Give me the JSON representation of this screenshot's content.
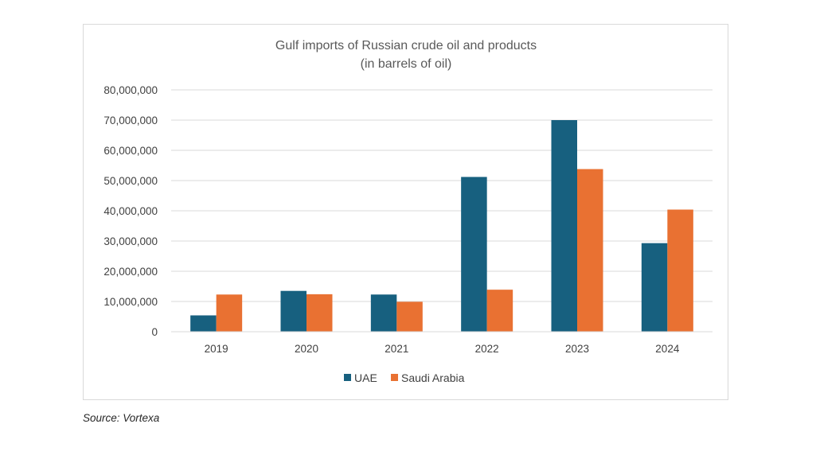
{
  "chart_data": {
    "type": "bar",
    "title": "Gulf imports of Russian crude oil and products",
    "subtitle": "(in barrels of oil)",
    "xlabel": "",
    "ylabel": "",
    "categories": [
      "2019",
      "2020",
      "2021",
      "2022",
      "2023",
      "2024"
    ],
    "series": [
      {
        "name": "UAE",
        "color": "#17607f",
        "values": [
          5400000,
          13500000,
          12300000,
          51200000,
          70000000,
          29300000
        ]
      },
      {
        "name": "Saudi Arabia",
        "color": "#e97132",
        "values": [
          12300000,
          12400000,
          9900000,
          13900000,
          53800000,
          40400000
        ]
      }
    ],
    "ylim": [
      0,
      80000000
    ],
    "yticks": [
      0,
      10000000,
      20000000,
      30000000,
      40000000,
      50000000,
      60000000,
      70000000,
      80000000
    ],
    "ytick_labels": [
      "0",
      "10,000,000",
      "20,000,000",
      "30,000,000",
      "40,000,000",
      "50,000,000",
      "60,000,000",
      "70,000,000",
      "80,000,000"
    ],
    "grid": true,
    "legend_position": "bottom"
  },
  "source_note": "Source: Vortexa"
}
